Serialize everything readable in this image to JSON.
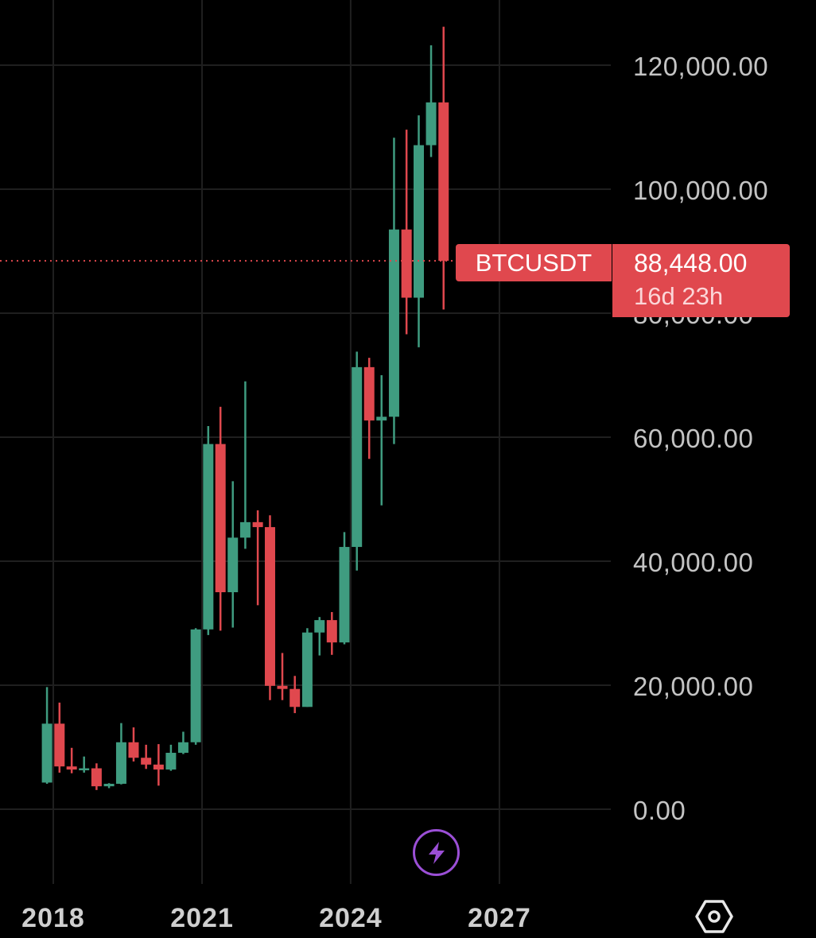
{
  "chart_data": {
    "type": "candlestick",
    "interval": "quarterly",
    "ylim": [
      -12000,
      125000
    ],
    "yticks": [
      "0.00",
      "20,000.00",
      "40,000.00",
      "60,000.00",
      "80,000.00",
      "100,000.00",
      "120,000.00"
    ],
    "ytick_values": [
      0,
      20000,
      40000,
      60000,
      80000,
      100000,
      120000
    ],
    "xticks": [
      "2018",
      "2021",
      "2024",
      "2027"
    ],
    "xtick_values": [
      "2018-01-01",
      "2021-01-01",
      "2024-01-01",
      "2027-01-01"
    ],
    "grid": true,
    "colors": {
      "up": "#3f9c80",
      "down": "#e0484e",
      "grid": "#1f1f1f",
      "last_line": "#e0484e"
    },
    "candles": [
      {
        "date": "2017-10-01",
        "o": 4300,
        "h": 19700,
        "l": 4100,
        "c": 13800
      },
      {
        "date": "2018-01-01",
        "o": 13800,
        "h": 17200,
        "l": 5900,
        "c": 6900
      },
      {
        "date": "2018-04-01",
        "o": 6900,
        "h": 9900,
        "l": 5800,
        "c": 6400
      },
      {
        "date": "2018-07-01",
        "o": 6400,
        "h": 8500,
        "l": 5900,
        "c": 6600
      },
      {
        "date": "2018-10-01",
        "o": 6600,
        "h": 7400,
        "l": 3100,
        "c": 3700
      },
      {
        "date": "2019-01-01",
        "o": 3700,
        "h": 4200,
        "l": 3400,
        "c": 4100
      },
      {
        "date": "2019-04-01",
        "o": 4100,
        "h": 13900,
        "l": 4000,
        "c": 10800
      },
      {
        "date": "2019-07-01",
        "o": 10800,
        "h": 13200,
        "l": 7700,
        "c": 8300
      },
      {
        "date": "2019-10-01",
        "o": 8300,
        "h": 10400,
        "l": 6500,
        "c": 7200
      },
      {
        "date": "2020-01-01",
        "o": 7200,
        "h": 10500,
        "l": 3800,
        "c": 6400
      },
      {
        "date": "2020-04-01",
        "o": 6400,
        "h": 10400,
        "l": 6200,
        "c": 9100
      },
      {
        "date": "2020-07-01",
        "o": 9100,
        "h": 12500,
        "l": 8900,
        "c": 10800
      },
      {
        "date": "2020-10-01",
        "o": 10800,
        "h": 29200,
        "l": 10400,
        "c": 29000
      },
      {
        "date": "2021-01-01",
        "o": 29000,
        "h": 61800,
        "l": 28100,
        "c": 58900
      },
      {
        "date": "2021-04-01",
        "o": 58900,
        "h": 64900,
        "l": 28800,
        "c": 35000
      },
      {
        "date": "2021-07-01",
        "o": 35000,
        "h": 52900,
        "l": 29300,
        "c": 43800
      },
      {
        "date": "2021-10-01",
        "o": 43800,
        "h": 69000,
        "l": 42000,
        "c": 46300
      },
      {
        "date": "2022-01-01",
        "o": 46300,
        "h": 48200,
        "l": 32900,
        "c": 45500
      },
      {
        "date": "2022-04-01",
        "o": 45500,
        "h": 47400,
        "l": 17600,
        "c": 19900
      },
      {
        "date": "2022-07-01",
        "o": 19900,
        "h": 25200,
        "l": 17600,
        "c": 19400
      },
      {
        "date": "2022-10-01",
        "o": 19400,
        "h": 21500,
        "l": 15500,
        "c": 16500
      },
      {
        "date": "2023-01-01",
        "o": 16500,
        "h": 29200,
        "l": 16500,
        "c": 28500
      },
      {
        "date": "2023-04-01",
        "o": 28500,
        "h": 31000,
        "l": 24800,
        "c": 30500
      },
      {
        "date": "2023-07-01",
        "o": 30500,
        "h": 31800,
        "l": 24900,
        "c": 26900
      },
      {
        "date": "2023-10-01",
        "o": 26900,
        "h": 44700,
        "l": 26600,
        "c": 42300
      },
      {
        "date": "2024-01-01",
        "o": 42300,
        "h": 73800,
        "l": 38500,
        "c": 71300
      },
      {
        "date": "2024-04-01",
        "o": 71300,
        "h": 72800,
        "l": 56500,
        "c": 62700
      },
      {
        "date": "2024-07-01",
        "o": 62700,
        "h": 70000,
        "l": 49000,
        "c": 63300
      },
      {
        "date": "2024-10-01",
        "o": 63300,
        "h": 108300,
        "l": 58900,
        "c": 93500
      },
      {
        "date": "2025-01-01",
        "o": 93500,
        "h": 109600,
        "l": 76600,
        "c": 82500
      },
      {
        "date": "2025-04-01",
        "o": 82500,
        "h": 111900,
        "l": 74500,
        "c": 107100
      },
      {
        "date": "2025-07-01",
        "o": 107100,
        "h": 123200,
        "l": 105200,
        "c": 114000
      },
      {
        "date": "2025-10-01",
        "o": 114000,
        "h": 126200,
        "l": 80600,
        "c": 88448
      }
    ],
    "last_price": 88448
  },
  "price_tag": {
    "symbol": "BTCUSDT",
    "price": "88,448.00",
    "countdown": "16d 23h"
  },
  "controls": {
    "bolt_icon": "lightning-bolt-icon",
    "settings_icon": "hexagon-settings-icon",
    "bolt_color": "#9b4fd6"
  }
}
